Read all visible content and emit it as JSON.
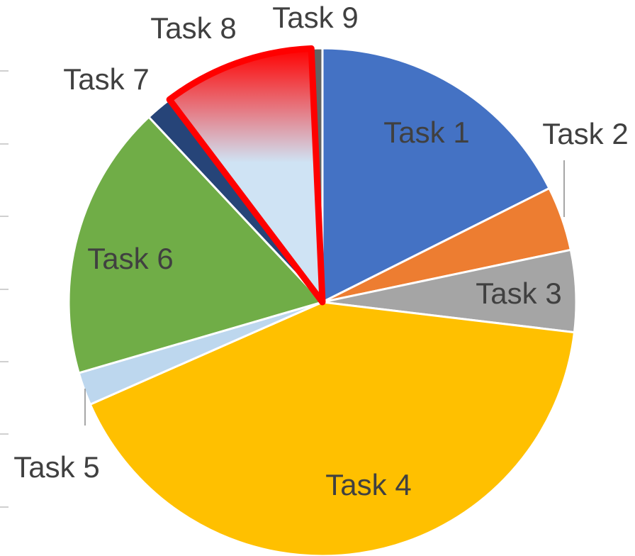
{
  "chart_data": {
    "type": "pie",
    "categories": [
      "Task 1",
      "Task 2",
      "Task 3",
      "Task 4",
      "Task 5",
      "Task 6",
      "Task 7",
      "Task 8",
      "Task 9"
    ],
    "values": [
      17.6,
      4.1,
      5.2,
      41.5,
      2.1,
      17.5,
      1.7,
      9.6,
      0.7
    ],
    "colors": [
      "#4472c4",
      "#ed7d31",
      "#a5a5a5",
      "#ffc000",
      "#bdd7ee",
      "#70ad47",
      "#264478",
      "#cfe3f4",
      "#636363"
    ],
    "highlight": {
      "index": 7,
      "color": "#ff0000"
    }
  }
}
